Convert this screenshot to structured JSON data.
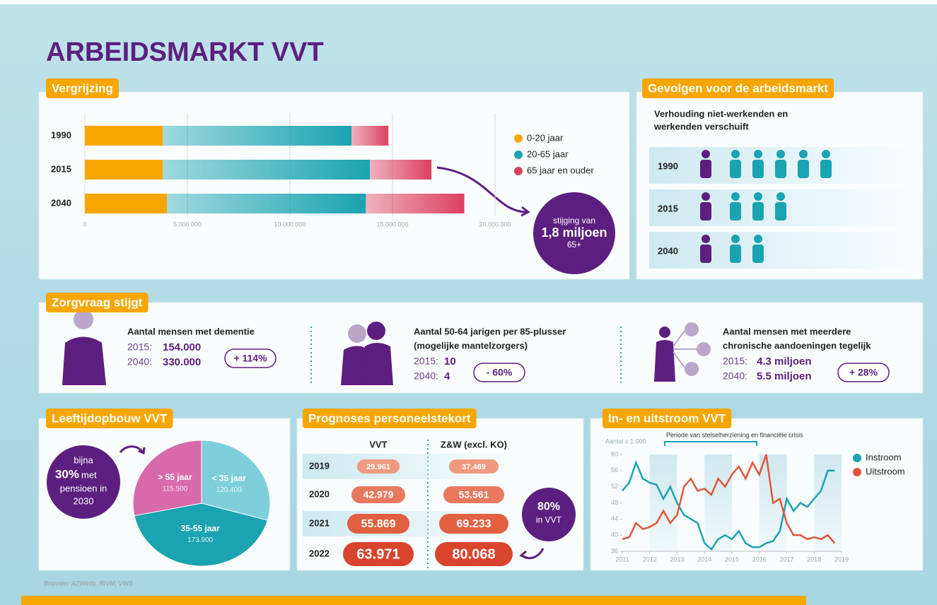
{
  "title": "ARBEIDSMARKT VVT",
  "chart_data": [
    {
      "type": "bar",
      "orientation": "horizontal",
      "stacked": true,
      "title": "Vergrijzing",
      "categories": [
        "1990",
        "2015",
        "2040"
      ],
      "series": [
        {
          "name": "0-20 jaar",
          "color": "#f7a600",
          "values": [
            3800000,
            3800000,
            4000000
          ]
        },
        {
          "name": "20-65 jaar",
          "color": "#1aa3b0",
          "values": [
            9200000,
            10100000,
            9700000
          ]
        },
        {
          "name": "65 jaar en ouder",
          "color": "#dc4060",
          "values": [
            1800000,
            3000000,
            4800000
          ]
        }
      ],
      "xlim": [
        0,
        20000000
      ],
      "xticks": [
        0,
        {
          "value": 5000000,
          "label": "5.000.000"
        },
        {
          "value": 10000000,
          "label": "10.000.000"
        },
        {
          "value": 15000000,
          "label": "15.000.000"
        },
        {
          "value": 20000000,
          "label": "20.000.000"
        }
      ],
      "grid": true,
      "legend": "right",
      "annotation": [
        "stijging van",
        "1,8 miljoen",
        "65+"
      ]
    },
    {
      "type": "pie",
      "title": "Leeftijdopbouw VVT",
      "categories": [
        "< 35 jaar",
        "35-55 jaar",
        "> 55 jaar"
      ],
      "values": [
        120400,
        173900,
        115500
      ],
      "value_labels": [
        "120.400",
        "173.900",
        "115.500"
      ],
      "colors": [
        "#7ecfdb",
        "#1aa3b0",
        "#d86aac"
      ],
      "annotation": [
        "bijna",
        "30%",
        "met",
        "pensioen in",
        "2030"
      ]
    },
    {
      "type": "line",
      "title": "In- en uitstroom VVT",
      "ylabel": "Aantal x 1.000",
      "annotation": "Periode van stelselherziening en financiële crisis",
      "x": [
        2011,
        2011.25,
        2011.5,
        2011.75,
        2012,
        2012.25,
        2012.5,
        2012.75,
        2013,
        2013.25,
        2013.5,
        2013.75,
        2014,
        2014.25,
        2014.5,
        2014.75,
        2015,
        2015.25,
        2015.5,
        2015.75,
        2016,
        2016.25,
        2016.5,
        2016.75,
        2017,
        2017.25,
        2017.5,
        2017.75,
        2018,
        2018.25,
        2018.5,
        2018.75
      ],
      "series": [
        {
          "name": "Instroom",
          "color": "#1aa3b0",
          "values": [
            51,
            53,
            58,
            54,
            53,
            52.5,
            49,
            52,
            48,
            45,
            44,
            43,
            38,
            36.5,
            39,
            40,
            39,
            41,
            38,
            37,
            37,
            38,
            38.5,
            41,
            49,
            46,
            48,
            47,
            49,
            51,
            56,
            56
          ]
        },
        {
          "name": "Uitstroom",
          "color": "#e0553a",
          "values": [
            39,
            39.5,
            43,
            41.5,
            42,
            43,
            46,
            43,
            45,
            52,
            54,
            51,
            51.5,
            50,
            54,
            52,
            55,
            57,
            54,
            58,
            55,
            60,
            48,
            49,
            43,
            40,
            40,
            39,
            39.5,
            39,
            40,
            38
          ]
        }
      ],
      "xlim": [
        2011,
        2019
      ],
      "xticks": [
        2011,
        2012,
        2013,
        2014,
        2015,
        2016,
        2017,
        2018,
        2019
      ],
      "ylim": [
        36,
        60
      ],
      "yticks": [
        36,
        40,
        44,
        48,
        52,
        56,
        60
      ],
      "legend": "right"
    }
  ],
  "gevolgen": {
    "heading": "Gevolgen voor de arbeidsmarkt",
    "subtitle": [
      "Verhouding niet-werkenden en",
      "werkenden verschuift"
    ],
    "rows": [
      {
        "year": "1990",
        "workers": 5
      },
      {
        "year": "2015",
        "workers": 3
      },
      {
        "year": "2040",
        "workers": 2
      }
    ]
  },
  "zorgvraag": {
    "heading": "Zorgvraag stijgt",
    "items": [
      {
        "label": [
          "Aantal mensen met dementie"
        ],
        "rows": [
          {
            "year": "2015:",
            "value": "154.000"
          },
          {
            "year": "2040:",
            "value": "330.000"
          }
        ],
        "change": "+ 114%"
      },
      {
        "label": [
          "Aantal 50-64 jarigen per 85-plusser",
          "(mogelijke mantelzorgers)"
        ],
        "rows": [
          {
            "year": "2015:",
            "value": "10"
          },
          {
            "year": "2040:",
            "value": "4"
          }
        ],
        "change": "- 60%"
      },
      {
        "label": [
          "Aantal mensen met meerdere",
          "chronische aandoeningen tegelijk"
        ],
        "rows": [
          {
            "year": "2015:",
            "value": "4.3 miljoen"
          },
          {
            "year": "2040:",
            "value": "5.5 miljoen"
          }
        ],
        "change": "+ 28%"
      }
    ]
  },
  "prognoses": {
    "heading": "Prognoses personeelstekort",
    "columns": [
      "VVT",
      "Z&W (excl. KO)"
    ],
    "rows": [
      [
        "2019",
        "29.961",
        "37.469"
      ],
      [
        "2020",
        "42.979",
        "53.561"
      ],
      [
        "2021",
        "55.869",
        "69.233"
      ],
      [
        "2022",
        "63.971",
        "80.068"
      ]
    ],
    "annotation": [
      "80%",
      "in VVT"
    ]
  },
  "sources": "Bronnen: AZWinfo, RIVM, VWS"
}
